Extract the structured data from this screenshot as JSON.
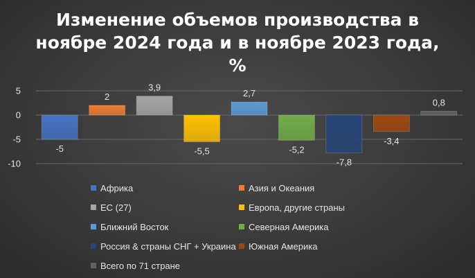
{
  "title_lines": [
    "Изменение объемов производства в",
    "ноябре 2024 года и в ноябре 2023 года,",
    "%"
  ],
  "chart_data": {
    "type": "bar",
    "title": "Изменение объемов производства в ноябре 2024 года и в ноябре 2023 года, %",
    "categories": [
      "Африка",
      "Азия и Океания",
      "ЕС (27)",
      "Европа, другие страны",
      "Ближний Восток",
      "Северная Америка",
      "Россия & страны СНГ + Украина",
      "Южная Америка",
      "Всего по 71 стране"
    ],
    "values": [
      -5,
      2,
      3.9,
      -5.5,
      2.7,
      -5.2,
      -7.8,
      -3.4,
      0.8
    ],
    "value_labels": [
      "-5",
      "2",
      "3,9",
      "-5,5",
      "2,7",
      "-5,2",
      "-7,8",
      "-3,4",
      "0,8"
    ],
    "colors": [
      "#4472c4",
      "#ed7d31",
      "#a5a5a5",
      "#ffc000",
      "#5b9bd5",
      "#70ad47",
      "#264478",
      "#9e480e",
      "#636363"
    ],
    "yticks": [
      "5",
      "0",
      "-5",
      "-10"
    ],
    "ylim": [
      -10,
      5
    ],
    "grid": true,
    "legend_position": "bottom"
  }
}
